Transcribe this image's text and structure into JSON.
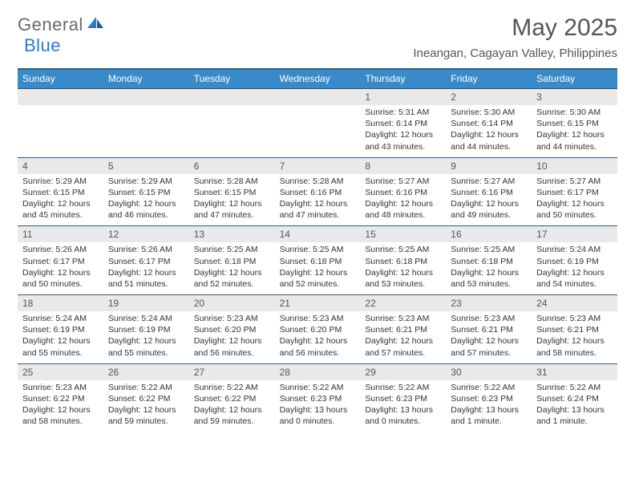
{
  "logo": {
    "word1": "General",
    "word2": "Blue"
  },
  "title": "May 2025",
  "location": "Ineangan, Cagayan Valley, Philippines",
  "colors": {
    "header_bg": "#3a8ac9",
    "border": "#2f5b80",
    "daynum_bg": "#e9e9e9",
    "text": "#333333",
    "muted": "#555555",
    "logo_gray": "#6a6a6a",
    "logo_blue": "#2f79bf"
  },
  "dow": [
    "Sunday",
    "Monday",
    "Tuesday",
    "Wednesday",
    "Thursday",
    "Friday",
    "Saturday"
  ],
  "weeks": [
    [
      {
        "n": "",
        "sr": "",
        "ss": "",
        "dl": ""
      },
      {
        "n": "",
        "sr": "",
        "ss": "",
        "dl": ""
      },
      {
        "n": "",
        "sr": "",
        "ss": "",
        "dl": ""
      },
      {
        "n": "",
        "sr": "",
        "ss": "",
        "dl": ""
      },
      {
        "n": "1",
        "sr": "Sunrise: 5:31 AM",
        "ss": "Sunset: 6:14 PM",
        "dl": "Daylight: 12 hours and 43 minutes."
      },
      {
        "n": "2",
        "sr": "Sunrise: 5:30 AM",
        "ss": "Sunset: 6:14 PM",
        "dl": "Daylight: 12 hours and 44 minutes."
      },
      {
        "n": "3",
        "sr": "Sunrise: 5:30 AM",
        "ss": "Sunset: 6:15 PM",
        "dl": "Daylight: 12 hours and 44 minutes."
      }
    ],
    [
      {
        "n": "4",
        "sr": "Sunrise: 5:29 AM",
        "ss": "Sunset: 6:15 PM",
        "dl": "Daylight: 12 hours and 45 minutes."
      },
      {
        "n": "5",
        "sr": "Sunrise: 5:29 AM",
        "ss": "Sunset: 6:15 PM",
        "dl": "Daylight: 12 hours and 46 minutes."
      },
      {
        "n": "6",
        "sr": "Sunrise: 5:28 AM",
        "ss": "Sunset: 6:15 PM",
        "dl": "Daylight: 12 hours and 47 minutes."
      },
      {
        "n": "7",
        "sr": "Sunrise: 5:28 AM",
        "ss": "Sunset: 6:16 PM",
        "dl": "Daylight: 12 hours and 47 minutes."
      },
      {
        "n": "8",
        "sr": "Sunrise: 5:27 AM",
        "ss": "Sunset: 6:16 PM",
        "dl": "Daylight: 12 hours and 48 minutes."
      },
      {
        "n": "9",
        "sr": "Sunrise: 5:27 AM",
        "ss": "Sunset: 6:16 PM",
        "dl": "Daylight: 12 hours and 49 minutes."
      },
      {
        "n": "10",
        "sr": "Sunrise: 5:27 AM",
        "ss": "Sunset: 6:17 PM",
        "dl": "Daylight: 12 hours and 50 minutes."
      }
    ],
    [
      {
        "n": "11",
        "sr": "Sunrise: 5:26 AM",
        "ss": "Sunset: 6:17 PM",
        "dl": "Daylight: 12 hours and 50 minutes."
      },
      {
        "n": "12",
        "sr": "Sunrise: 5:26 AM",
        "ss": "Sunset: 6:17 PM",
        "dl": "Daylight: 12 hours and 51 minutes."
      },
      {
        "n": "13",
        "sr": "Sunrise: 5:25 AM",
        "ss": "Sunset: 6:18 PM",
        "dl": "Daylight: 12 hours and 52 minutes."
      },
      {
        "n": "14",
        "sr": "Sunrise: 5:25 AM",
        "ss": "Sunset: 6:18 PM",
        "dl": "Daylight: 12 hours and 52 minutes."
      },
      {
        "n": "15",
        "sr": "Sunrise: 5:25 AM",
        "ss": "Sunset: 6:18 PM",
        "dl": "Daylight: 12 hours and 53 minutes."
      },
      {
        "n": "16",
        "sr": "Sunrise: 5:25 AM",
        "ss": "Sunset: 6:18 PM",
        "dl": "Daylight: 12 hours and 53 minutes."
      },
      {
        "n": "17",
        "sr": "Sunrise: 5:24 AM",
        "ss": "Sunset: 6:19 PM",
        "dl": "Daylight: 12 hours and 54 minutes."
      }
    ],
    [
      {
        "n": "18",
        "sr": "Sunrise: 5:24 AM",
        "ss": "Sunset: 6:19 PM",
        "dl": "Daylight: 12 hours and 55 minutes."
      },
      {
        "n": "19",
        "sr": "Sunrise: 5:24 AM",
        "ss": "Sunset: 6:19 PM",
        "dl": "Daylight: 12 hours and 55 minutes."
      },
      {
        "n": "20",
        "sr": "Sunrise: 5:23 AM",
        "ss": "Sunset: 6:20 PM",
        "dl": "Daylight: 12 hours and 56 minutes."
      },
      {
        "n": "21",
        "sr": "Sunrise: 5:23 AM",
        "ss": "Sunset: 6:20 PM",
        "dl": "Daylight: 12 hours and 56 minutes."
      },
      {
        "n": "22",
        "sr": "Sunrise: 5:23 AM",
        "ss": "Sunset: 6:21 PM",
        "dl": "Daylight: 12 hours and 57 minutes."
      },
      {
        "n": "23",
        "sr": "Sunrise: 5:23 AM",
        "ss": "Sunset: 6:21 PM",
        "dl": "Daylight: 12 hours and 57 minutes."
      },
      {
        "n": "24",
        "sr": "Sunrise: 5:23 AM",
        "ss": "Sunset: 6:21 PM",
        "dl": "Daylight: 12 hours and 58 minutes."
      }
    ],
    [
      {
        "n": "25",
        "sr": "Sunrise: 5:23 AM",
        "ss": "Sunset: 6:22 PM",
        "dl": "Daylight: 12 hours and 58 minutes."
      },
      {
        "n": "26",
        "sr": "Sunrise: 5:22 AM",
        "ss": "Sunset: 6:22 PM",
        "dl": "Daylight: 12 hours and 59 minutes."
      },
      {
        "n": "27",
        "sr": "Sunrise: 5:22 AM",
        "ss": "Sunset: 6:22 PM",
        "dl": "Daylight: 12 hours and 59 minutes."
      },
      {
        "n": "28",
        "sr": "Sunrise: 5:22 AM",
        "ss": "Sunset: 6:23 PM",
        "dl": "Daylight: 13 hours and 0 minutes."
      },
      {
        "n": "29",
        "sr": "Sunrise: 5:22 AM",
        "ss": "Sunset: 6:23 PM",
        "dl": "Daylight: 13 hours and 0 minutes."
      },
      {
        "n": "30",
        "sr": "Sunrise: 5:22 AM",
        "ss": "Sunset: 6:23 PM",
        "dl": "Daylight: 13 hours and 1 minute."
      },
      {
        "n": "31",
        "sr": "Sunrise: 5:22 AM",
        "ss": "Sunset: 6:24 PM",
        "dl": "Daylight: 13 hours and 1 minute."
      }
    ]
  ]
}
